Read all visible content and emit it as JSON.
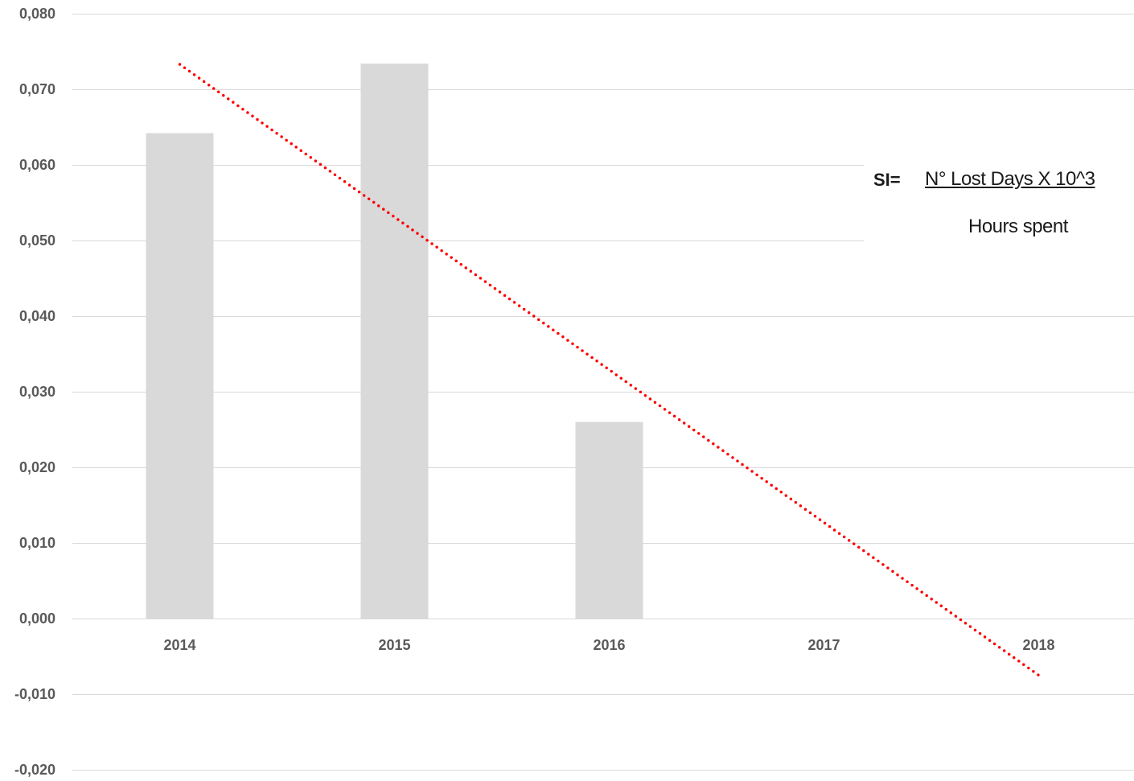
{
  "chart_data": {
    "type": "bar",
    "categories": [
      "2014",
      "2015",
      "2016",
      "2017",
      "2018"
    ],
    "series": [
      {
        "values": [
          0.0642,
          0.0734,
          0.026,
          0,
          0
        ],
        "color": "#d9d9d9"
      }
    ],
    "trendline": {
      "type": "linear",
      "style": "dotted",
      "color": "#ff0000",
      "start": {
        "x": "2014",
        "y": 0.0733
      },
      "end": {
        "x": "2018",
        "y": -0.0075
      }
    },
    "ylim": [
      -0.02,
      0.08
    ],
    "yticks": [
      -0.02,
      -0.01,
      0.0,
      0.01,
      0.02,
      0.03,
      0.04,
      0.05,
      0.06,
      0.07,
      0.08
    ],
    "ytick_labels": [
      "-0,020",
      "-0,010",
      "0,000",
      "0,010",
      "0,020",
      "0,030",
      "0,040",
      "0,050",
      "0,060",
      "0,070",
      "0,080"
    ],
    "grid": true,
    "gridline_color": "#d9d9d9",
    "axis_label_color": "#595959",
    "title": "",
    "xlabel": "",
    "ylabel": ""
  },
  "formula": {
    "label": "SI=",
    "numerator": "N° Lost Days X 10^3",
    "denominator": "Hours spent"
  }
}
